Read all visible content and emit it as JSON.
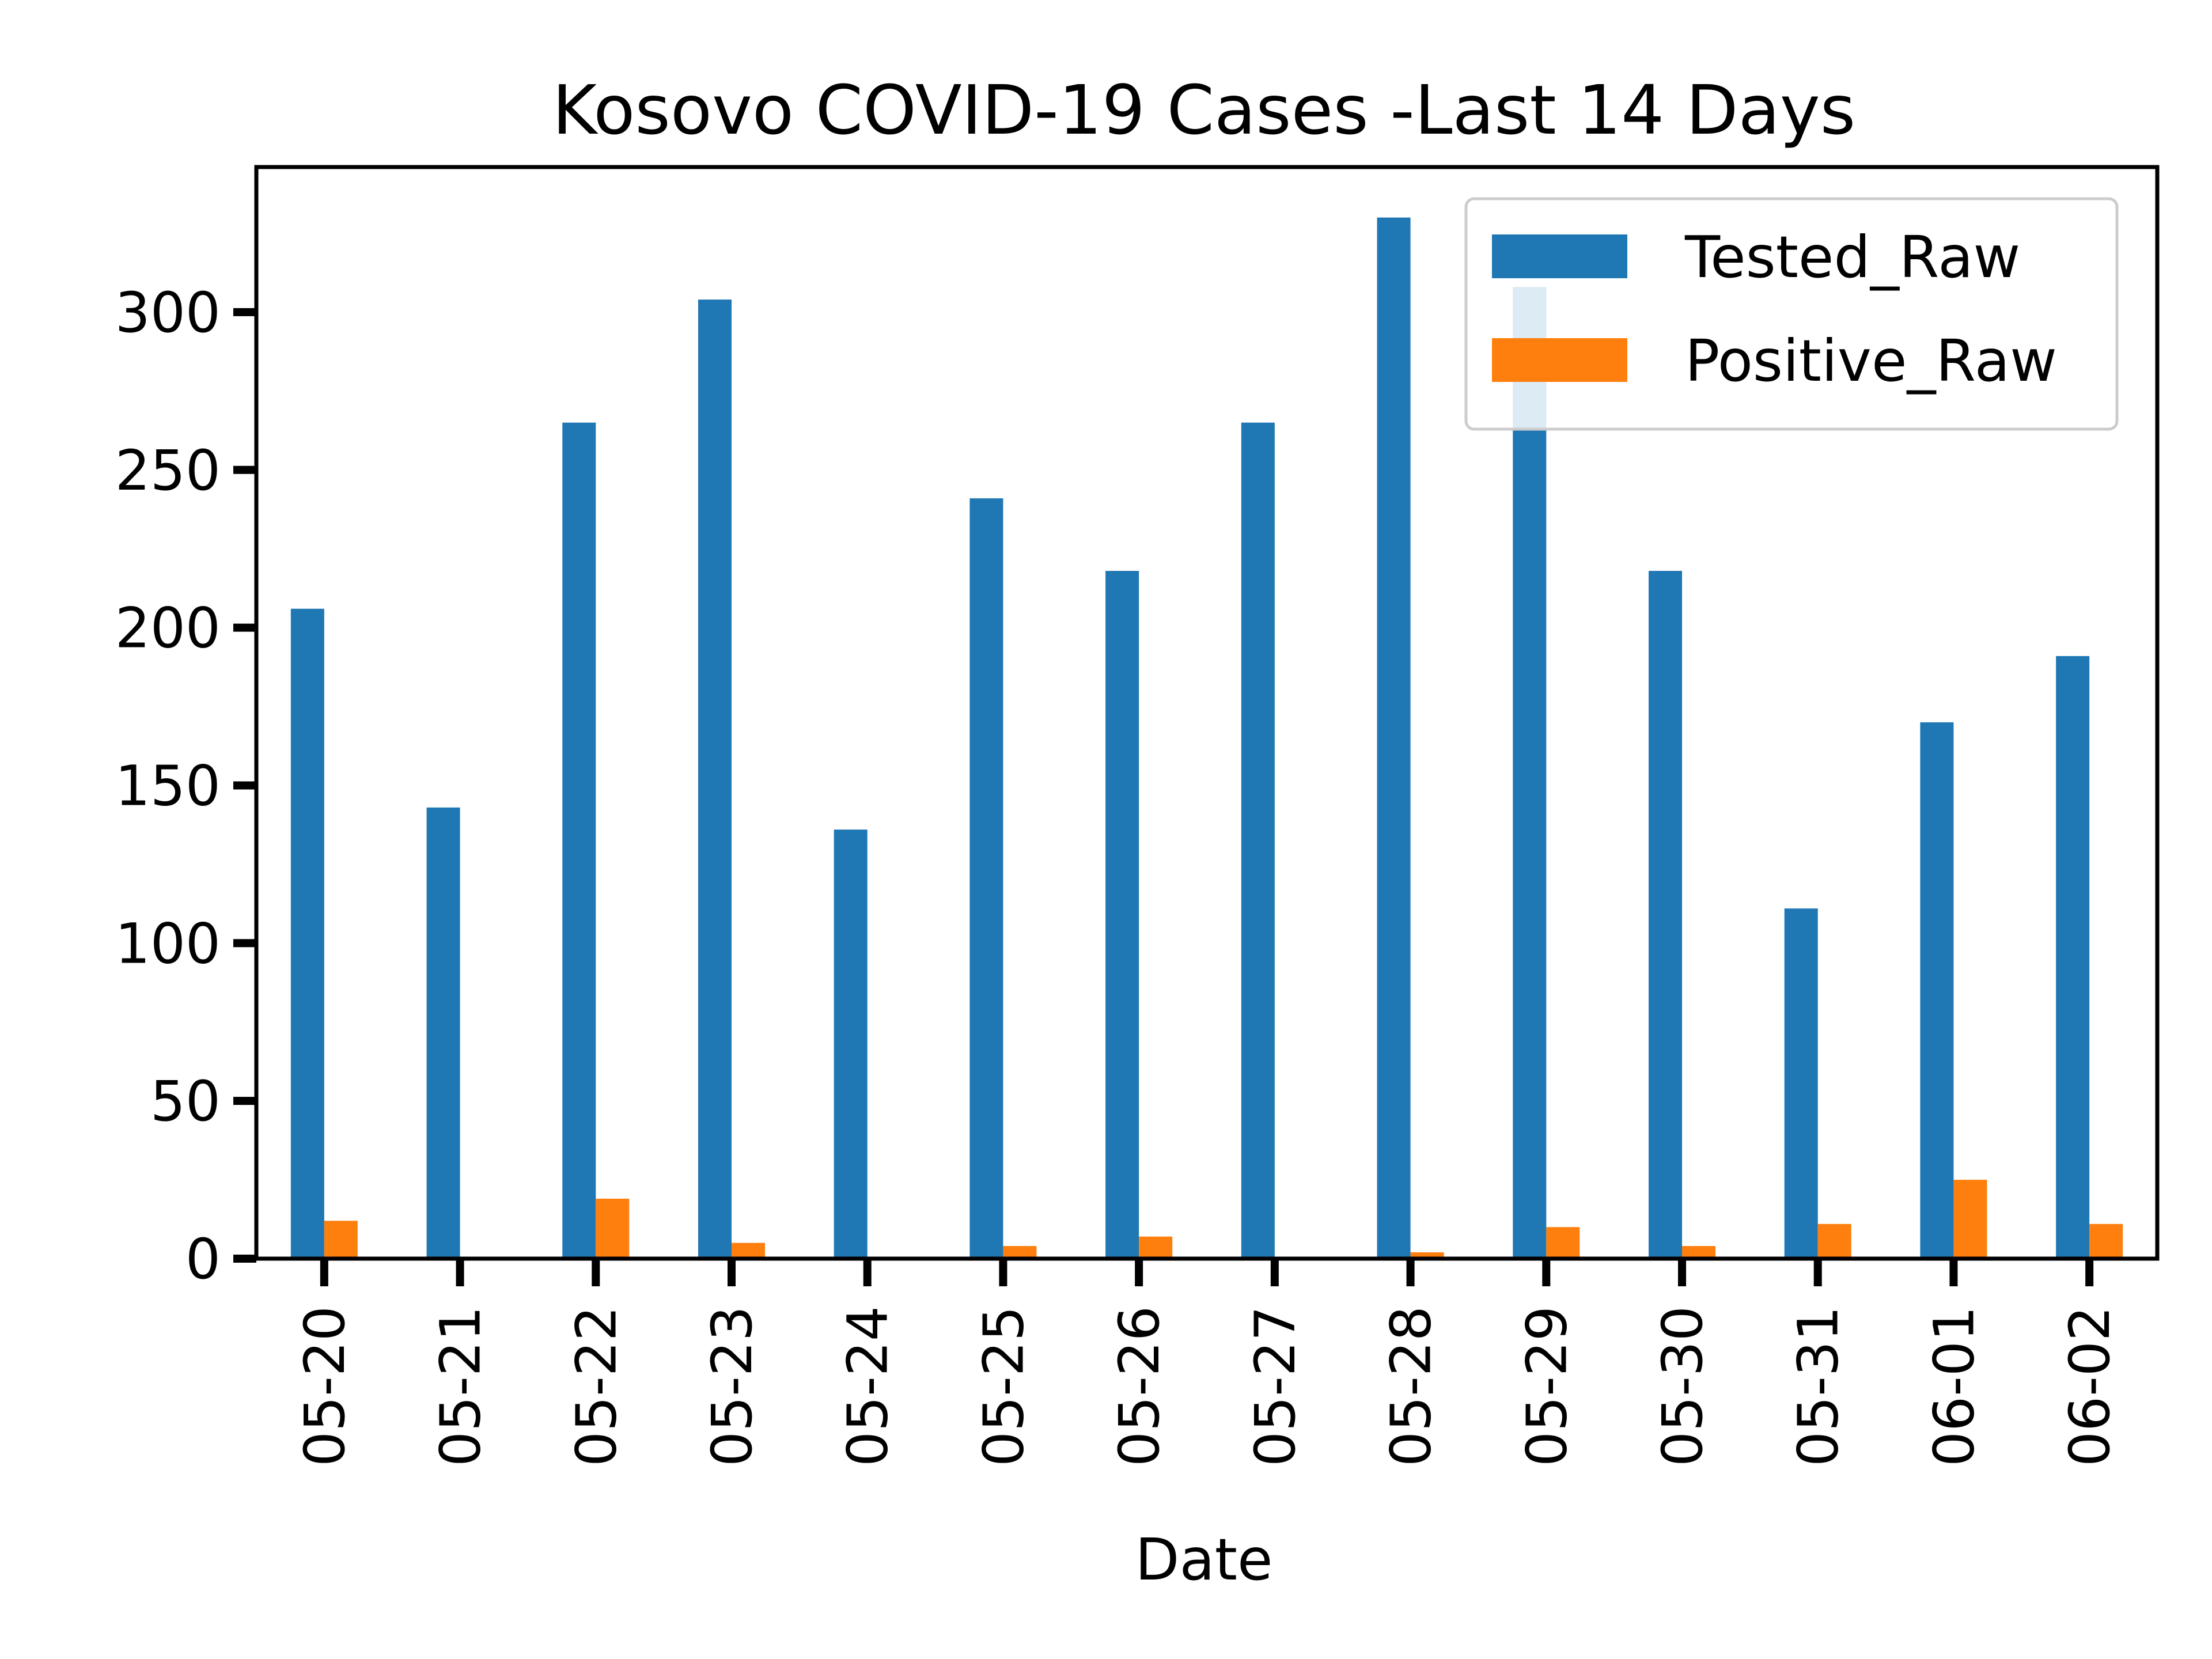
{
  "chart_data": {
    "type": "bar",
    "title": "Kosovo COVID-19 Cases -Last 14 Days",
    "xlabel": "Date",
    "ylabel": "",
    "categories": [
      "05-20",
      "05-21",
      "05-22",
      "05-23",
      "05-24",
      "05-25",
      "05-26",
      "05-27",
      "05-28",
      "05-29",
      "05-30",
      "05-31",
      "06-01",
      "06-02"
    ],
    "series": [
      {
        "name": "Tested_Raw",
        "color": "#1f77b4",
        "values": [
          206,
          143,
          265,
          304,
          136,
          241,
          218,
          265,
          330,
          308,
          218,
          111,
          170,
          191
        ]
      },
      {
        "name": "Positive_Raw",
        "color": "#ff7f0e",
        "values": [
          12,
          0,
          19,
          5,
          0,
          4,
          7,
          0,
          2,
          10,
          4,
          11,
          25,
          11
        ]
      }
    ],
    "yticks": [
      0,
      50,
      100,
      150,
      200,
      250,
      300
    ],
    "ylim": [
      0,
      346
    ],
    "grid": false,
    "legend": "top-right"
  }
}
